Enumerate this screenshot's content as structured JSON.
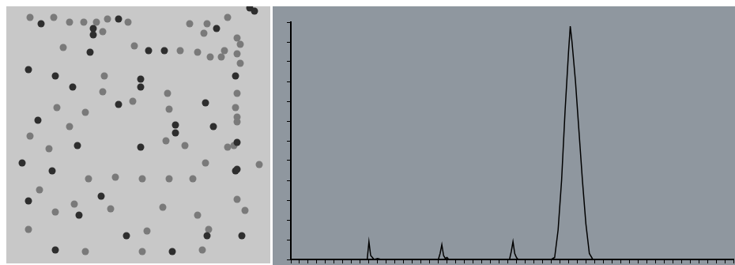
{
  "chart_data": {
    "type": "line",
    "x": [
      0,
      40,
      44,
      45,
      46,
      47,
      48,
      50,
      52,
      80,
      85,
      86,
      87,
      88,
      89,
      90,
      91,
      120,
      126,
      127,
      128,
      129,
      130,
      131,
      150,
      152,
      154,
      156,
      158,
      160,
      161,
      162,
      164,
      166,
      168,
      170,
      172,
      174,
      200,
      255
    ],
    "values": [
      0,
      0,
      0,
      0.9,
      0.2,
      0.1,
      0,
      0.05,
      0,
      0,
      0,
      0.3,
      0.75,
      0.2,
      0.05,
      0.1,
      0,
      0,
      0,
      0.4,
      0.9,
      0.3,
      0.1,
      0,
      0,
      0.1,
      1.5,
      4,
      7.5,
      10.5,
      11.8,
      11,
      9,
      6.5,
      4,
      1.8,
      0.3,
      0,
      0,
      0
    ],
    "color": "#000000",
    "xlim": [
      0,
      255
    ],
    "xticks": [
      0,
      5,
      10,
      15,
      20,
      25,
      30,
      35,
      40,
      45,
      50,
      55,
      60,
      65,
      70,
      75,
      80,
      85,
      90,
      95,
      100,
      105,
      110,
      115,
      120,
      125,
      130,
      135,
      140,
      145,
      150,
      155,
      160,
      165,
      170,
      175,
      180,
      185,
      190,
      195,
      200,
      205,
      210,
      215,
      220,
      225,
      230,
      235,
      240,
      245,
      250,
      255
    ],
    "ylim": [
      0,
      12
    ],
    "yticks": [
      0,
      1,
      2,
      3,
      4,
      5,
      6,
      7,
      8,
      9,
      10,
      11,
      12
    ],
    "grid": false,
    "tick_labels": false
  }
}
